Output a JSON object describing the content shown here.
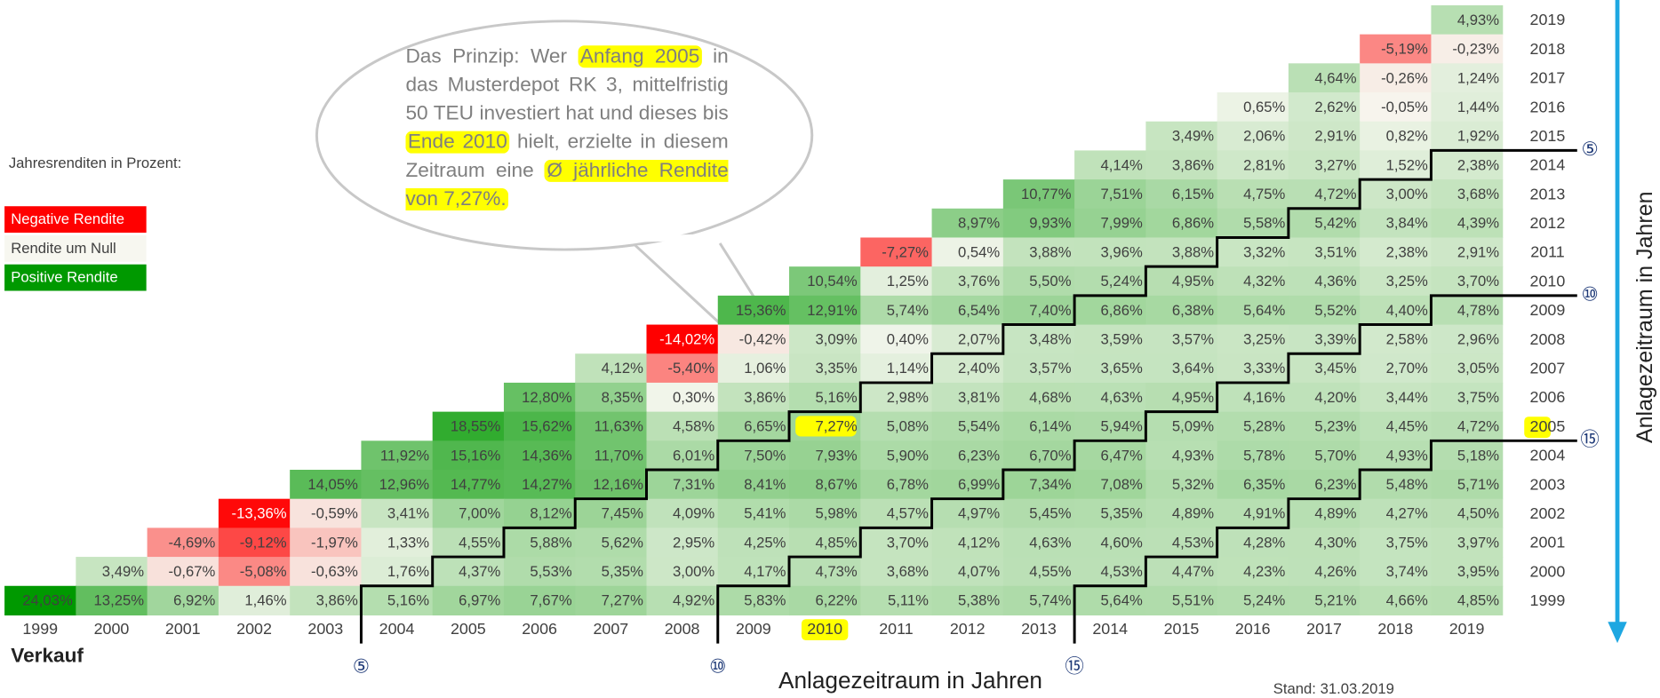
{
  "chart_data": {
    "type": "heatmap",
    "y_title": "Anlagezeitraum in Jahren",
    "x_title": "Anlagezeitraum in Jahren",
    "x_label": "Verkauf",
    "legend_title": "Jahresrenditen in Prozent:",
    "footnote": "Stand: 31.03.2019",
    "colors": {
      "negative": "#ff0000",
      "zero": "#f7f7f0",
      "positive": "#009900"
    },
    "legend": [
      {
        "label": "Negative Rendite",
        "color": "#ff0000"
      },
      {
        "label": "Rendite um Null",
        "color": "#f7f7f0"
      },
      {
        "label": "Positive Rendite",
        "color": "#009900"
      }
    ],
    "highlight": {
      "x": "2010",
      "series": "2005",
      "color": "#ffff00"
    },
    "holding_periods": [
      {
        "value": 5,
        "label": "⑤"
      },
      {
        "value": 10,
        "label": "⑩"
      },
      {
        "value": 15,
        "label": "⑮"
      }
    ],
    "callout": [
      {
        "text": "Das Prinzip: Wer "
      },
      {
        "text": "Anfang 2005",
        "highlight": true
      },
      {
        "text": " in das Musterdepot RK 3, mittelfristig 50 TEU investiert hat und dieses bis "
      },
      {
        "text": "Ende 2010",
        "highlight": true
      },
      {
        "text": " hielt, erzielte in diesem Zeitraum eine "
      },
      {
        "text": "Ø jährliche Rendite von 7,27%.",
        "highlight": true
      }
    ],
    "x": [
      "1999",
      "2000",
      "2001",
      "2002",
      "2003",
      "2004",
      "2005",
      "2006",
      "2007",
      "2008",
      "2009",
      "2010",
      "2011",
      "2012",
      "2013",
      "2014",
      "2015",
      "2016",
      "2017",
      "2018",
      "2019"
    ],
    "series": [
      {
        "name": "2019",
        "values": [
          null,
          null,
          null,
          null,
          null,
          null,
          null,
          null,
          null,
          null,
          null,
          null,
          null,
          null,
          null,
          null,
          null,
          null,
          null,
          null,
          4.93
        ],
        "value_labels": [
          null,
          null,
          null,
          null,
          null,
          null,
          null,
          null,
          null,
          null,
          null,
          null,
          null,
          null,
          null,
          null,
          null,
          null,
          null,
          null,
          "4,93%"
        ]
      },
      {
        "name": "2018",
        "values": [
          null,
          null,
          null,
          null,
          null,
          null,
          null,
          null,
          null,
          null,
          null,
          null,
          null,
          null,
          null,
          null,
          null,
          null,
          null,
          -5.19,
          -0.23
        ],
        "value_labels": [
          null,
          null,
          null,
          null,
          null,
          null,
          null,
          null,
          null,
          null,
          null,
          null,
          null,
          null,
          null,
          null,
          null,
          null,
          null,
          "-5,19%",
          "-0,23%"
        ]
      },
      {
        "name": "2017",
        "values": [
          null,
          null,
          null,
          null,
          null,
          null,
          null,
          null,
          null,
          null,
          null,
          null,
          null,
          null,
          null,
          null,
          null,
          null,
          4.64,
          -0.26,
          1.24
        ],
        "value_labels": [
          null,
          null,
          null,
          null,
          null,
          null,
          null,
          null,
          null,
          null,
          null,
          null,
          null,
          null,
          null,
          null,
          null,
          null,
          "4,64%",
          "-0,26%",
          "1,24%"
        ]
      },
      {
        "name": "2016",
        "values": [
          null,
          null,
          null,
          null,
          null,
          null,
          null,
          null,
          null,
          null,
          null,
          null,
          null,
          null,
          null,
          null,
          null,
          0.65,
          2.62,
          -0.05,
          1.44
        ],
        "value_labels": [
          null,
          null,
          null,
          null,
          null,
          null,
          null,
          null,
          null,
          null,
          null,
          null,
          null,
          null,
          null,
          null,
          null,
          "0,65%",
          "2,62%",
          "-0,05%",
          "1,44%"
        ]
      },
      {
        "name": "2015",
        "values": [
          null,
          null,
          null,
          null,
          null,
          null,
          null,
          null,
          null,
          null,
          null,
          null,
          null,
          null,
          null,
          null,
          3.49,
          2.06,
          2.91,
          0.82,
          1.92
        ],
        "value_labels": [
          null,
          null,
          null,
          null,
          null,
          null,
          null,
          null,
          null,
          null,
          null,
          null,
          null,
          null,
          null,
          null,
          "3,49%",
          "2,06%",
          "2,91%",
          "0,82%",
          "1,92%"
        ]
      },
      {
        "name": "2014",
        "values": [
          null,
          null,
          null,
          null,
          null,
          null,
          null,
          null,
          null,
          null,
          null,
          null,
          null,
          null,
          null,
          4.14,
          3.86,
          2.81,
          3.27,
          1.52,
          2.38
        ],
        "value_labels": [
          null,
          null,
          null,
          null,
          null,
          null,
          null,
          null,
          null,
          null,
          null,
          null,
          null,
          null,
          null,
          "4,14%",
          "3,86%",
          "2,81%",
          "3,27%",
          "1,52%",
          "2,38%"
        ]
      },
      {
        "name": "2013",
        "values": [
          null,
          null,
          null,
          null,
          null,
          null,
          null,
          null,
          null,
          null,
          null,
          null,
          null,
          null,
          10.77,
          7.51,
          6.15,
          4.75,
          4.72,
          3.0,
          3.68
        ],
        "value_labels": [
          null,
          null,
          null,
          null,
          null,
          null,
          null,
          null,
          null,
          null,
          null,
          null,
          null,
          null,
          "10,77%",
          "7,51%",
          "6,15%",
          "4,75%",
          "4,72%",
          "3,00%",
          "3,68%"
        ]
      },
      {
        "name": "2012",
        "values": [
          null,
          null,
          null,
          null,
          null,
          null,
          null,
          null,
          null,
          null,
          null,
          null,
          null,
          8.97,
          9.93,
          7.99,
          6.86,
          5.58,
          5.42,
          3.84,
          4.39
        ],
        "value_labels": [
          null,
          null,
          null,
          null,
          null,
          null,
          null,
          null,
          null,
          null,
          null,
          null,
          null,
          "8,97%",
          "9,93%",
          "7,99%",
          "6,86%",
          "5,58%",
          "5,42%",
          "3,84%",
          "4,39%"
        ]
      },
      {
        "name": "2011",
        "values": [
          null,
          null,
          null,
          null,
          null,
          null,
          null,
          null,
          null,
          null,
          null,
          null,
          -7.27,
          0.54,
          3.88,
          3.96,
          3.88,
          3.32,
          3.51,
          2.38,
          2.91
        ],
        "value_labels": [
          null,
          null,
          null,
          null,
          null,
          null,
          null,
          null,
          null,
          null,
          null,
          null,
          "-7,27%",
          "0,54%",
          "3,88%",
          "3,96%",
          "3,88%",
          "3,32%",
          "3,51%",
          "2,38%",
          "2,91%"
        ]
      },
      {
        "name": "2010",
        "values": [
          null,
          null,
          null,
          null,
          null,
          null,
          null,
          null,
          null,
          null,
          null,
          10.54,
          1.25,
          3.76,
          5.5,
          5.24,
          4.95,
          4.32,
          4.36,
          3.25,
          3.7
        ],
        "value_labels": [
          null,
          null,
          null,
          null,
          null,
          null,
          null,
          null,
          null,
          null,
          null,
          "10,54%",
          "1,25%",
          "3,76%",
          "5,50%",
          "5,24%",
          "4,95%",
          "4,32%",
          "4,36%",
          "3,25%",
          "3,70%"
        ]
      },
      {
        "name": "2009",
        "values": [
          null,
          null,
          null,
          null,
          null,
          null,
          null,
          null,
          null,
          null,
          15.36,
          12.91,
          5.74,
          6.54,
          7.4,
          6.86,
          6.38,
          5.64,
          5.52,
          4.4,
          4.78
        ],
        "value_labels": [
          null,
          null,
          null,
          null,
          null,
          null,
          null,
          null,
          null,
          null,
          "15,36%",
          "12,91%",
          "5,74%",
          "6,54%",
          "7,40%",
          "6,86%",
          "6,38%",
          "5,64%",
          "5,52%",
          "4,40%",
          "4,78%"
        ]
      },
      {
        "name": "2008",
        "values": [
          null,
          null,
          null,
          null,
          null,
          null,
          null,
          null,
          null,
          -14.02,
          -0.42,
          3.09,
          0.4,
          2.07,
          3.48,
          3.59,
          3.57,
          3.25,
          3.39,
          2.58,
          2.96
        ],
        "value_labels": [
          null,
          null,
          null,
          null,
          null,
          null,
          null,
          null,
          null,
          "-14,02%",
          "-0,42%",
          "3,09%",
          "0,40%",
          "2,07%",
          "3,48%",
          "3,59%",
          "3,57%",
          "3,25%",
          "3,39%",
          "2,58%",
          "2,96%"
        ]
      },
      {
        "name": "2007",
        "values": [
          null,
          null,
          null,
          null,
          null,
          null,
          null,
          null,
          4.12,
          -5.4,
          1.06,
          3.35,
          1.14,
          2.4,
          3.57,
          3.65,
          3.64,
          3.33,
          3.45,
          2.7,
          3.05
        ],
        "value_labels": [
          null,
          null,
          null,
          null,
          null,
          null,
          null,
          null,
          "4,12%",
          "-5,40%",
          "1,06%",
          "3,35%",
          "1,14%",
          "2,40%",
          "3,57%",
          "3,65%",
          "3,64%",
          "3,33%",
          "3,45%",
          "2,70%",
          "3,05%"
        ]
      },
      {
        "name": "2006",
        "values": [
          null,
          null,
          null,
          null,
          null,
          null,
          null,
          12.8,
          8.35,
          0.3,
          3.86,
          5.16,
          2.98,
          3.81,
          4.68,
          4.63,
          4.95,
          4.16,
          4.2,
          3.44,
          3.75
        ],
        "value_labels": [
          null,
          null,
          null,
          null,
          null,
          null,
          null,
          "12,80%",
          "8,35%",
          "0,30%",
          "3,86%",
          "5,16%",
          "2,98%",
          "3,81%",
          "4,68%",
          "4,63%",
          "4,95%",
          "4,16%",
          "4,20%",
          "3,44%",
          "3,75%"
        ]
      },
      {
        "name": "2005",
        "values": [
          null,
          null,
          null,
          null,
          null,
          null,
          18.55,
          15.62,
          11.63,
          4.58,
          6.65,
          7.27,
          5.08,
          5.54,
          6.14,
          5.94,
          5.09,
          5.28,
          5.23,
          4.45,
          4.72
        ],
        "value_labels": [
          null,
          null,
          null,
          null,
          null,
          null,
          "18,55%",
          "15,62%",
          "11,63%",
          "4,58%",
          "6,65%",
          "7,27%",
          "5,08%",
          "5,54%",
          "6,14%",
          "5,94%",
          "5,09%",
          "5,28%",
          "5,23%",
          "4,45%",
          "4,72%"
        ]
      },
      {
        "name": "2004",
        "values": [
          null,
          null,
          null,
          null,
          null,
          11.92,
          15.16,
          14.36,
          11.7,
          6.01,
          7.5,
          7.93,
          5.9,
          6.23,
          6.7,
          6.47,
          4.93,
          5.78,
          5.7,
          4.93,
          5.18
        ],
        "value_labels": [
          null,
          null,
          null,
          null,
          null,
          "11,92%",
          "15,16%",
          "14,36%",
          "11,70%",
          "6,01%",
          "7,50%",
          "7,93%",
          "5,90%",
          "6,23%",
          "6,70%",
          "6,47%",
          "4,93%",
          "5,78%",
          "5,70%",
          "4,93%",
          "5,18%"
        ]
      },
      {
        "name": "2003",
        "values": [
          null,
          null,
          null,
          null,
          14.05,
          12.96,
          14.77,
          14.27,
          12.16,
          7.31,
          8.41,
          8.67,
          6.78,
          6.99,
          7.34,
          7.08,
          5.32,
          6.35,
          6.23,
          5.48,
          5.71
        ],
        "value_labels": [
          null,
          null,
          null,
          null,
          "14,05%",
          "12,96%",
          "14,77%",
          "14,27%",
          "12,16%",
          "7,31%",
          "8,41%",
          "8,67%",
          "6,78%",
          "6,99%",
          "7,34%",
          "7,08%",
          "5,32%",
          "6,35%",
          "6,23%",
          "5,48%",
          "5,71%"
        ]
      },
      {
        "name": "2002",
        "values": [
          null,
          null,
          null,
          -13.36,
          -0.59,
          3.41,
          7.0,
          8.12,
          7.45,
          4.09,
          5.41,
          5.98,
          4.57,
          4.97,
          5.45,
          5.35,
          4.89,
          4.91,
          4.89,
          4.27,
          4.5
        ],
        "value_labels": [
          null,
          null,
          null,
          "-13,36%",
          "-0,59%",
          "3,41%",
          "7,00%",
          "8,12%",
          "7,45%",
          "4,09%",
          "5,41%",
          "5,98%",
          "4,57%",
          "4,97%",
          "5,45%",
          "5,35%",
          "4,89%",
          "4,91%",
          "4,89%",
          "4,27%",
          "4,50%"
        ]
      },
      {
        "name": "2001",
        "values": [
          null,
          null,
          -4.69,
          -9.12,
          -1.97,
          1.33,
          4.55,
          5.88,
          5.62,
          2.95,
          4.25,
          4.85,
          3.7,
          4.12,
          4.63,
          4.6,
          4.53,
          4.28,
          4.3,
          3.75,
          3.97
        ],
        "value_labels": [
          null,
          null,
          "-4,69%",
          "-9,12%",
          "-1,97%",
          "1,33%",
          "4,55%",
          "5,88%",
          "5,62%",
          "2,95%",
          "4,25%",
          "4,85%",
          "3,70%",
          "4,12%",
          "4,63%",
          "4,60%",
          "4,53%",
          "4,28%",
          "4,30%",
          "3,75%",
          "3,97%"
        ]
      },
      {
        "name": "2000",
        "values": [
          null,
          3.49,
          -0.67,
          -5.08,
          -0.63,
          1.76,
          4.37,
          5.53,
          5.35,
          3.0,
          4.17,
          4.73,
          3.68,
          4.07,
          4.55,
          4.53,
          4.47,
          4.23,
          4.26,
          3.74,
          3.95
        ],
        "value_labels": [
          null,
          "3,49%",
          "-0,67%",
          "-5,08%",
          "-0,63%",
          "1,76%",
          "4,37%",
          "5,53%",
          "5,35%",
          "3,00%",
          "4,17%",
          "4,73%",
          "3,68%",
          "4,07%",
          "4,55%",
          "4,53%",
          "4,47%",
          "4,23%",
          "4,26%",
          "3,74%",
          "3,95%"
        ]
      },
      {
        "name": "1999",
        "values": [
          24.03,
          13.25,
          6.92,
          1.46,
          3.86,
          5.16,
          6.97,
          7.67,
          7.27,
          4.92,
          5.83,
          6.22,
          5.11,
          5.38,
          5.74,
          5.64,
          5.51,
          5.24,
          5.21,
          4.66,
          4.85
        ],
        "value_labels": [
          "24,03%",
          "13,25%",
          "6,92%",
          "1,46%",
          "3,86%",
          "5,16%",
          "6,97%",
          "7,67%",
          "7,27%",
          "4,92%",
          "5,83%",
          "6,22%",
          "5,11%",
          "5,38%",
          "5,74%",
          "5,64%",
          "5,51%",
          "5,24%",
          "5,21%",
          "4,66%",
          "4,85%"
        ]
      }
    ]
  }
}
